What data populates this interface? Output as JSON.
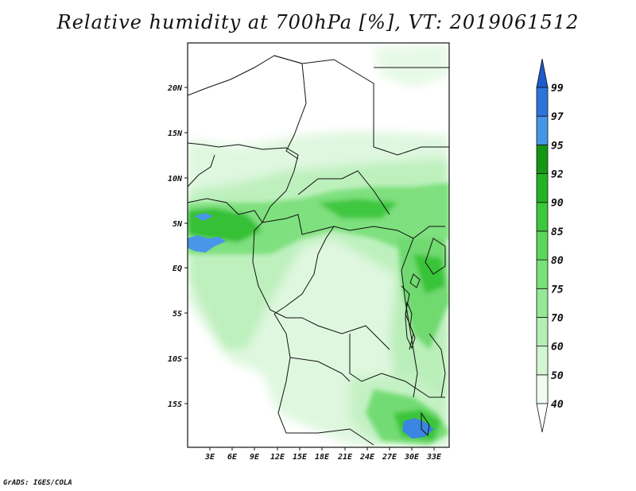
{
  "title": "Relative humidity at 700hPa [%], VT: 2019061512",
  "credit": "GrADS: IGES/COLA",
  "lat_labels": [
    "20N",
    "15N",
    "10N",
    "5N",
    "EQ",
    "5S",
    "10S",
    "15S"
  ],
  "lon_labels": [
    "3E",
    "6E",
    "9E",
    "12E",
    "15E",
    "18E",
    "21E",
    "24E",
    "27E",
    "30E",
    "33E"
  ],
  "colorbar": {
    "levels": [
      "40",
      "50",
      "60",
      "70",
      "75",
      "80",
      "85",
      "90",
      "92",
      "95",
      "97",
      "99"
    ],
    "colors": [
      "#f0fcf0",
      "#d2f5d2",
      "#b4efb4",
      "#96e896",
      "#78e178",
      "#5ad75a",
      "#3cc83c",
      "#23b423",
      "#149614",
      "#4696e6",
      "#2d73dc",
      "#1e5ac8"
    ]
  }
}
